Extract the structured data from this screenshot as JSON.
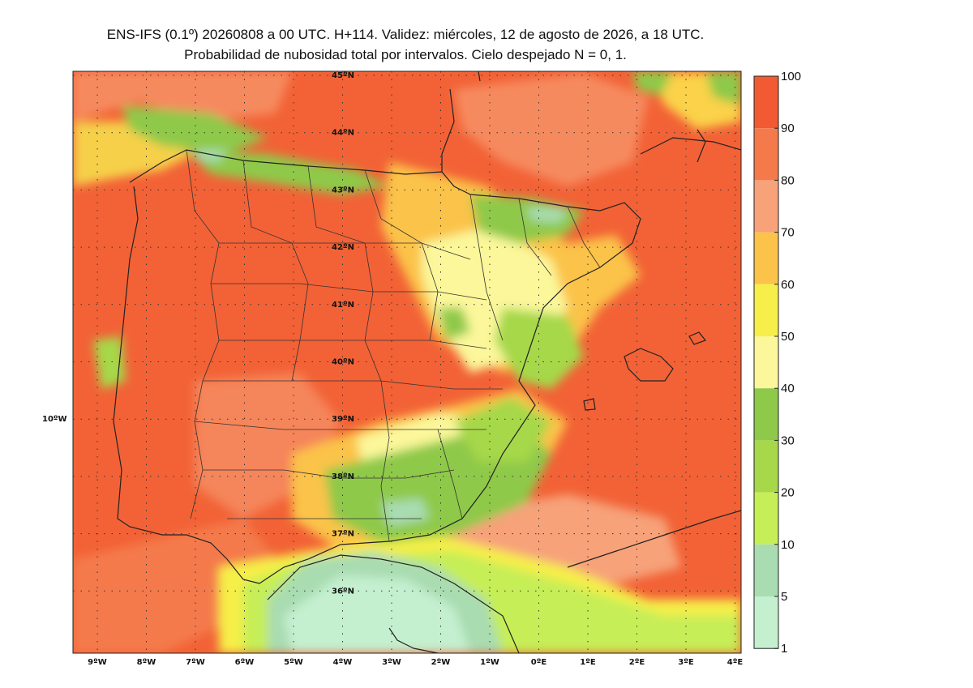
{
  "header": {
    "title_line1": "ENS-IFS (0.1º) 20260808 a 00 UTC. H+114. Validez: miércoles, 12 de agosto de 2026, a 18 UTC.",
    "title_line2": "Probabilidad de nubosidad total por intervalos. Cielo despejado N = 0, 1."
  },
  "map": {
    "lat_labels": [
      "45ºN",
      "44ºN",
      "43ºN",
      "42ºN",
      "41ºN",
      "40ºN",
      "39ºN",
      "38ºN",
      "37ºN",
      "36ºN"
    ],
    "lon_labels": [
      "9ºW",
      "8ºW",
      "7ºW",
      "6ºW",
      "5ºW",
      "4ºW",
      "3ºW",
      "2ºW",
      "1ºW",
      "0ºE",
      "1ºE",
      "2ºE",
      "3ºE",
      "4ºE"
    ],
    "side_label": "10ºW"
  },
  "colorbar": {
    "labels": [
      "100",
      "90",
      "80",
      "70",
      "60",
      "50",
      "40",
      "30",
      "20",
      "10",
      "5",
      "1"
    ],
    "colors": [
      "#f15a32",
      "#f47a4c",
      "#f7a279",
      "#fbc34a",
      "#f6ef4a",
      "#fbf79a",
      "#8fc94a",
      "#a6d84a",
      "#c6ee56",
      "#a9dcb1",
      "#c4f0d0"
    ]
  }
}
